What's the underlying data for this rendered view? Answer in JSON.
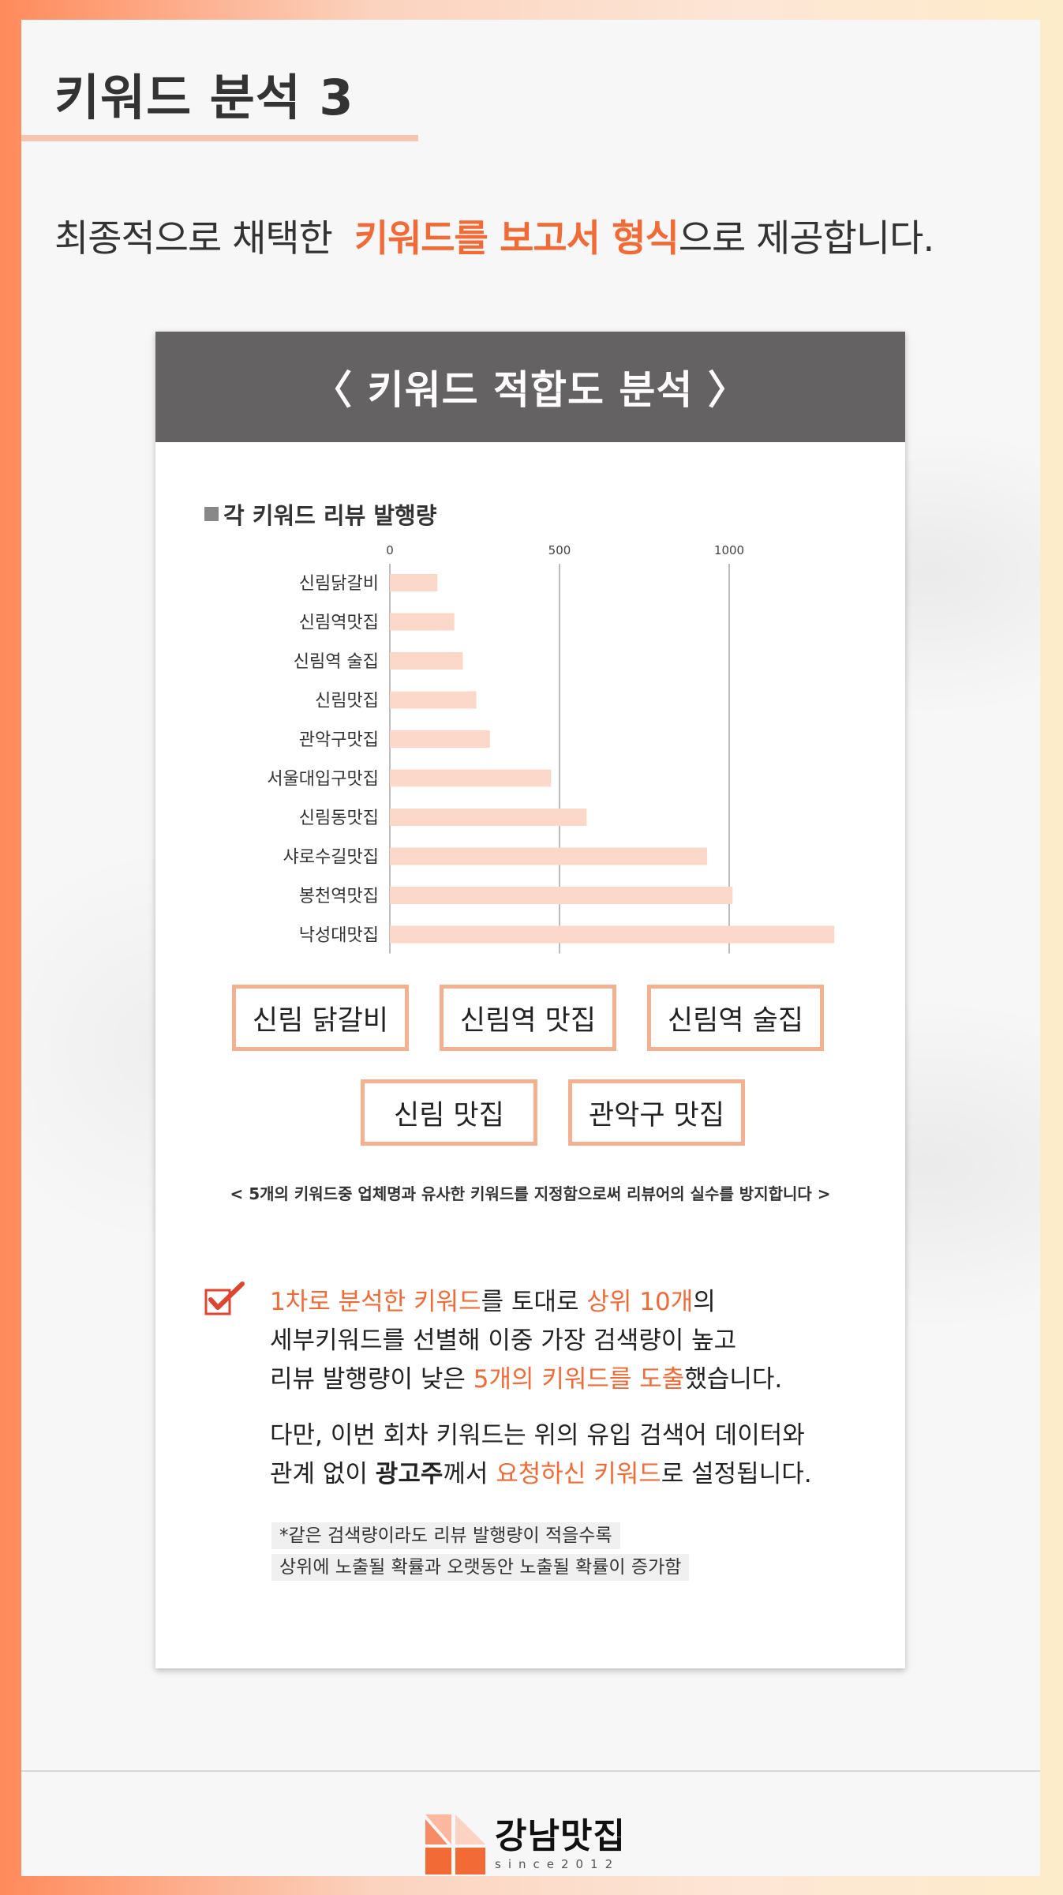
{
  "page": {
    "title": "키워드 분석 3",
    "subtitle_prefix": "최종적으로 채택한",
    "subtitle_highlight": "키워드를 보고서 형식",
    "subtitle_suffix": "으로 제공합니다."
  },
  "card": {
    "header": "〈 키워드 적합도 분석 〉",
    "chart_label": "각 키워드 리뷰 발행량"
  },
  "chart_data": {
    "type": "bar",
    "orientation": "horizontal",
    "title": "각 키워드 리뷰 발행량",
    "categories": [
      "신림닭갈비",
      "신림역맛집",
      "신림역 술집",
      "신림맛집",
      "관악구맛집",
      "서울대입구맛집",
      "신림동맛집",
      "샤로수길맛집",
      "봉천역맛집",
      "낙성대맛집"
    ],
    "values": [
      140,
      190,
      215,
      255,
      295,
      475,
      580,
      935,
      1010,
      1310
    ],
    "x_ticks": [
      0,
      500,
      1000
    ],
    "xlim": [
      0,
      1400
    ],
    "grid": true,
    "bar_color": "#fcd8ca"
  },
  "keywords": [
    "신림 닭갈비",
    "신림역 맛집",
    "신림역 술집",
    "신림 맛집",
    "관악구 맛집"
  ],
  "keyword_note": "< 5개의 키워드중 업체명과 유사한 키워드를 지정함으로써 리뷰어의 실수를 방지합니다 >",
  "description": {
    "l1_a": "1차로 분석한 키워드",
    "l1_b": "를 토대로 ",
    "l1_c": "상위 10개",
    "l1_d": "의",
    "l2": "세부키워드를 선별해 이중 가장 검색량이 높고",
    "l3_a": "리뷰 발행량이 낮은 ",
    "l3_b": "5개의 키워드를 도출",
    "l3_c": "했습니다.",
    "l4": "다만, 이번 회차 키워드는 위의 유입 검색어 데이터와",
    "l5_a": "관계 없이 ",
    "l5_b": "광고주",
    "l5_c": "께서 ",
    "l5_d": "요청하신 키워드",
    "l5_e": "로 설정됩니다."
  },
  "footnote": {
    "line1": "*같은 검색량이라도 리뷰 발행량이 적을수록",
    "line2": "상위에 노출될 확률과 오랫동안 노출될 확률이 증가함"
  },
  "logo": {
    "name": "강남맛집",
    "since": "since2012"
  },
  "colors": {
    "accent": "#f26a35",
    "header_bg": "#656263",
    "box_border": "#f4b08f"
  }
}
